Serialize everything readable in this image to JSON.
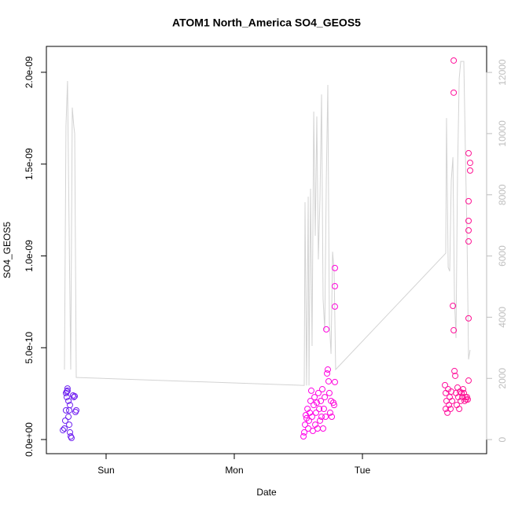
{
  "chart_data": {
    "type": "scatter",
    "title": "ATOM1 North_America SO4_GEOS5",
    "xlabel": "Date",
    "ylabel": "SO4_GEOS5",
    "xlim": [
      0.534,
      3.969
    ],
    "xticks": [
      {
        "value": 1,
        "label": "Sun"
      },
      {
        "value": 2,
        "label": "Mon"
      },
      {
        "value": 3,
        "label": "Tue"
      }
    ],
    "ylim": [
      -7.7e-11,
      2.141e-09
    ],
    "yticks": [
      {
        "value": 0,
        "label": "0.0e+00"
      },
      {
        "value": 5e-10,
        "label": "5.0e-10"
      },
      {
        "value": 1e-09,
        "label": "1.0e-09"
      },
      {
        "value": 1.5e-09,
        "label": "1.5e-09"
      },
      {
        "value": 2e-09,
        "label": "2.0e-09"
      }
    ],
    "y2lim": [
      -460,
      12850
    ],
    "y2ticks": [
      0,
      2000,
      4000,
      6000,
      8000,
      10000,
      12000
    ],
    "y2_color": "#bebebe",
    "series": [
      {
        "type": "scatter",
        "color_ramp": [
          "#6a22f0",
          "#ff00ff",
          "#ff1493"
        ],
        "x": [
          0.663,
          0.675,
          0.681,
          0.687,
          0.693,
          0.693,
          0.699,
          0.699,
          0.706,
          0.712,
          0.718,
          0.724,
          0.73,
          0.712,
          0.718,
          0.742,
          0.748,
          0.755,
          0.761,
          0.767,
          0.687,
          0.706,
          2.54,
          2.546,
          2.552,
          2.558,
          2.564,
          2.571,
          2.577,
          2.583,
          2.589,
          2.595,
          2.601,
          2.607,
          2.613,
          2.62,
          2.626,
          2.632,
          2.638,
          2.644,
          2.65,
          2.656,
          2.663,
          2.669,
          2.675,
          2.681,
          2.687,
          2.693,
          2.699,
          2.706,
          2.712,
          2.718,
          2.724,
          2.73,
          2.736,
          2.742,
          2.748,
          2.755,
          2.761,
          2.773,
          2.779,
          2.785,
          2.785,
          2.785,
          2.785,
          3.644,
          3.65,
          3.65,
          3.656,
          3.663,
          3.669,
          3.675,
          3.681,
          3.687,
          3.693,
          3.699,
          3.706,
          3.712,
          3.712,
          3.712,
          3.718,
          3.724,
          3.73,
          3.736,
          3.742,
          3.748,
          3.755,
          3.761,
          3.767,
          3.773,
          3.779,
          3.785,
          3.791,
          3.798,
          3.804,
          3.81,
          3.816,
          3.822,
          3.828,
          3.828,
          3.828,
          3.828,
          3.828,
          3.828,
          3.828,
          3.84,
          3.84
        ],
        "values": [
          5.1e-11,
          6e-11,
          1.03e-10,
          1.59e-10,
          2.31e-10,
          2.61e-10,
          2.66e-10,
          2.78e-10,
          1.24e-10,
          8.1e-11,
          3.9e-11,
          1.7e-11,
          8.6e-12,
          1.59e-10,
          1.88e-10,
          2.4e-10,
          2.31e-10,
          2.36e-10,
          1.5e-10,
          1.59e-10,
          2.53e-10,
          2.1e-10,
          1.7e-11,
          3.9e-11,
          8.1e-11,
          1.33e-10,
          1.16e-10,
          1.67e-10,
          6e-11,
          1.03e-10,
          1.46e-10,
          2.1e-10,
          2.66e-10,
          1.24e-10,
          4.7e-11,
          1.88e-10,
          2.31e-10,
          8.1e-11,
          1.46e-10,
          2.01e-10,
          6e-11,
          2.53e-10,
          1.67e-10,
          1.03e-10,
          2.1e-10,
          1.24e-10,
          2.74e-10,
          6e-11,
          1.67e-10,
          2.31e-10,
          1.24e-10,
          6e-10,
          3.6e-10,
          3.81e-10,
          3.17e-10,
          2.53e-10,
          1.46e-10,
          2.1e-10,
          1.24e-10,
          2.01e-10,
          1.88e-10,
          9.34e-10,
          8.35e-10,
          7.24e-10,
          3.13e-10,
          2.96e-10,
          2.53e-10,
          1.67e-10,
          2.1e-10,
          1.46e-10,
          2.74e-10,
          1.88e-10,
          2.31e-10,
          1.67e-10,
          2.61e-10,
          2.1e-10,
          7.28e-10,
          2.064e-09,
          1.889e-09,
          5.95e-10,
          3.73e-10,
          3.47e-10,
          2.53e-10,
          1.88e-10,
          2.83e-10,
          2.31e-10,
          1.67e-10,
          2.61e-10,
          2.1e-10,
          2.53e-10,
          2.31e-10,
          2.74e-10,
          2.53e-10,
          2.1e-10,
          2.31e-10,
          2.18e-10,
          2.31e-10,
          2.18e-10,
          1.559e-09,
          1.298e-09,
          1.191e-09,
          1.139e-09,
          1.079e-09,
          6.6e-10,
          3.21e-10,
          1.507e-09,
          1.465e-09
        ]
      },
      {
        "type": "line",
        "axis": "y2",
        "color": "#d3d3d3",
        "x": [
          0.675,
          0.687,
          0.699,
          0.712,
          0.724,
          0.736,
          0.748,
          0.755,
          0.767,
          0.773,
          2.546,
          2.552,
          2.564,
          2.577,
          2.583,
          2.595,
          2.607,
          2.62,
          2.632,
          2.644,
          2.656,
          2.669,
          2.681,
          2.693,
          2.706,
          2.718,
          2.73,
          2.742,
          2.755,
          2.767,
          2.779,
          2.791,
          3.65,
          3.656,
          3.669,
          3.681,
          3.693,
          3.706,
          3.718,
          3.73,
          3.742,
          3.755,
          3.767,
          3.791,
          3.804,
          3.816,
          3.828,
          3.84
        ],
        "values": [
          2290,
          10250,
          11720,
          6660,
          2290,
          10850,
          10250,
          10000,
          2030,
          2030,
          1770,
          7760,
          1770,
          7940,
          1770,
          8200,
          3060,
          10720,
          6660,
          10560,
          5890,
          7940,
          11280,
          4600,
          3570,
          8460,
          11590,
          3830,
          2800,
          6140,
          5500,
          2290,
          6090,
          10510,
          5630,
          5500,
          8460,
          9230,
          4600,
          3320,
          8710,
          11800,
          12360,
          12360,
          9230,
          6660,
          2620,
          2930
        ]
      }
    ]
  }
}
